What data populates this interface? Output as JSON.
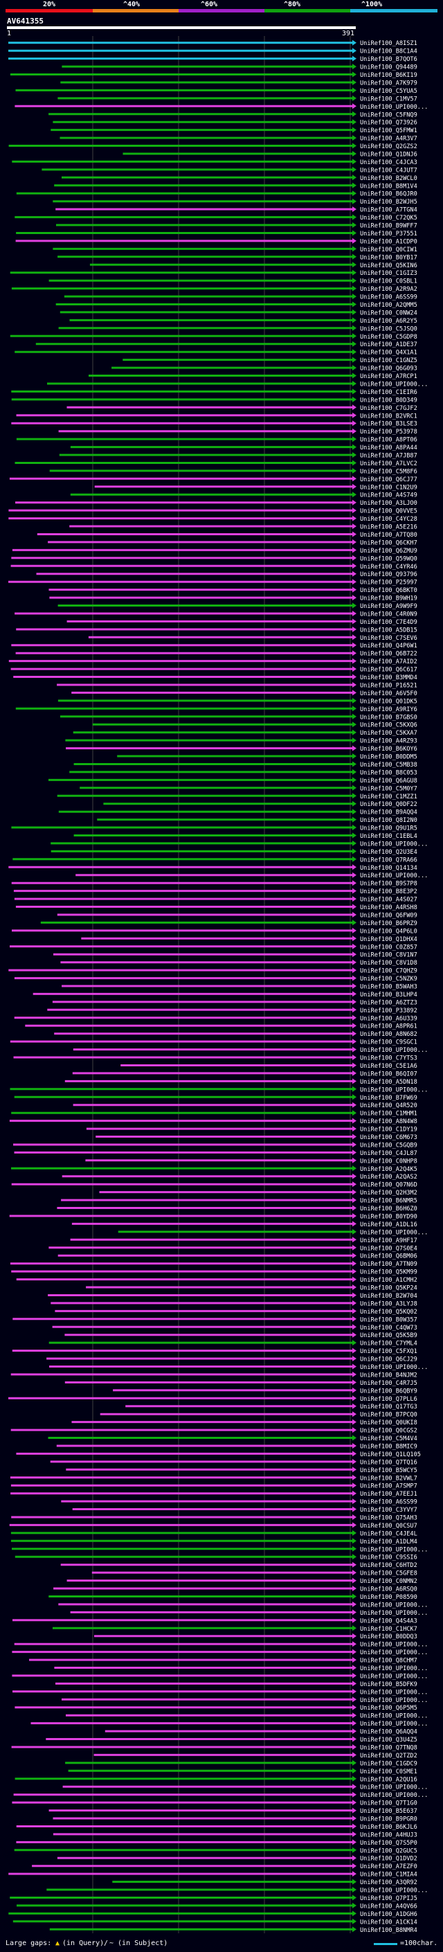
{
  "legend": {
    "labels": [
      "20%",
      "^40%",
      "^60%",
      "^80%",
      "^100%"
    ],
    "colors": [
      "#e8101a",
      "#e8801a",
      "#a020c8",
      "#10a010",
      "#20b0d8"
    ]
  },
  "query": {
    "name": "AV641355",
    "start": "1",
    "end": "391"
  },
  "colors": {
    "background": "#000014",
    "green": "#10b010",
    "magenta": "#e040e0",
    "cyan": "#20c0e0",
    "grid": "#404040"
  },
  "hits": [
    {
      "label": "UniRef100_A8ISZ1",
      "color": "cyan"
    },
    {
      "label": "UniRef100_B8C1A4",
      "color": "cyan"
    },
    {
      "label": "UniRef100_B7QOT6",
      "color": "cyan"
    },
    {
      "label": "UniRef100_Q94489",
      "color": "green"
    },
    {
      "label": "UniRef100_B6KI19",
      "color": "green"
    },
    {
      "label": "UniRef100_A7K979",
      "color": "green"
    },
    {
      "label": "UniRef100_C5YUA5",
      "color": "green"
    },
    {
      "label": "UniRef100_C1MV57",
      "color": "green"
    },
    {
      "label": "UniRef100_UPI000...",
      "color": "magenta"
    },
    {
      "label": "UniRef100_C5FNQ9",
      "color": "green"
    },
    {
      "label": "UniRef100_Q73926",
      "color": "green"
    },
    {
      "label": "UniRef100_Q5FMW1",
      "color": "green"
    },
    {
      "label": "UniRef100_A4R3V7",
      "color": "green"
    },
    {
      "label": "UniRef100_Q2GZS2",
      "color": "green"
    },
    {
      "label": "UniRef100_Q1DNJ6",
      "color": "green"
    },
    {
      "label": "UniRef100_C4JCA3",
      "color": "green"
    },
    {
      "label": "UniRef100_C4JUT7",
      "color": "green"
    },
    {
      "label": "UniRef100_B2WCL0",
      "color": "green"
    },
    {
      "label": "UniRef100_B8M1V4",
      "color": "green"
    },
    {
      "label": "UniRef100_B6QJR0",
      "color": "green"
    },
    {
      "label": "UniRef100_B2WJH5",
      "color": "green"
    },
    {
      "label": "UniRef100_A7TGN4",
      "color": "magenta"
    },
    {
      "label": "UniRef100_C72QK5",
      "color": "green"
    },
    {
      "label": "UniRef100_B9WFF7",
      "color": "green"
    },
    {
      "label": "UniRef100_P37551",
      "color": "green"
    },
    {
      "label": "UniRef100_A1CDP0",
      "color": "magenta"
    },
    {
      "label": "UniRef100_Q0CIW1",
      "color": "green"
    },
    {
      "label": "UniRef100_B0YB17",
      "color": "green"
    },
    {
      "label": "UniRef100_Q5KIN6",
      "color": "green"
    },
    {
      "label": "UniRef100_C1GIZ3",
      "color": "green"
    },
    {
      "label": "UniRef100_C0SBL1",
      "color": "green"
    },
    {
      "label": "UniRef100_A2R9A2",
      "color": "green"
    },
    {
      "label": "UniRef100_A6SS99",
      "color": "green"
    },
    {
      "label": "UniRef100_A2QMM5",
      "color": "green"
    },
    {
      "label": "UniRef100_C0NW24",
      "color": "green"
    },
    {
      "label": "UniRef100_A6R2Y5",
      "color": "green"
    },
    {
      "label": "UniRef100_C5JSQ0",
      "color": "green"
    },
    {
      "label": "UniRef100_C5GDP8",
      "color": "green"
    },
    {
      "label": "UniRef100_A1DE37",
      "color": "green"
    },
    {
      "label": "UniRef100_Q4X1A1",
      "color": "green"
    },
    {
      "label": "UniRef100_C1GNZ5",
      "color": "green"
    },
    {
      "label": "UniRef100_Q6G093",
      "color": "green"
    },
    {
      "label": "UniRef100_A7RCP1",
      "color": "green"
    },
    {
      "label": "UniRef100_UPI000...",
      "color": "green"
    },
    {
      "label": "UniRef100_C1EIR6",
      "color": "green"
    },
    {
      "label": "UniRef100_B0D349",
      "color": "green"
    },
    {
      "label": "UniRef100_C7GJF2",
      "color": "magenta"
    },
    {
      "label": "UniRef100_B2VRC1",
      "color": "magenta"
    },
    {
      "label": "UniRef100_B3LSE3",
      "color": "magenta"
    },
    {
      "label": "UniRef100_P53978",
      "color": "magenta"
    },
    {
      "label": "UniRef100_A8PT06",
      "color": "green"
    },
    {
      "label": "UniRef100_A8PA44",
      "color": "green"
    },
    {
      "label": "UniRef100_A7JB87",
      "color": "green"
    },
    {
      "label": "UniRef100_A7LVC2",
      "color": "green"
    },
    {
      "label": "UniRef100_C5M8F6",
      "color": "green"
    },
    {
      "label": "UniRef100_Q6CJ77",
      "color": "magenta"
    },
    {
      "label": "UniRef100_C1N2U9",
      "color": "magenta"
    },
    {
      "label": "UniRef100_A4S749",
      "color": "green"
    },
    {
      "label": "UniRef100_A3LJO0",
      "color": "magenta"
    },
    {
      "label": "UniRef100_Q0VVE5",
      "color": "magenta"
    },
    {
      "label": "UniRef100_C4YC28",
      "color": "magenta"
    },
    {
      "label": "UniRef100_A5E216",
      "color": "magenta"
    },
    {
      "label": "UniRef100_A7TQ80",
      "color": "magenta"
    },
    {
      "label": "UniRef100_Q6CKH7",
      "color": "magenta"
    },
    {
      "label": "UniRef100_Q6ZMU9",
      "color": "magenta"
    },
    {
      "label": "UniRef100_Q59WQ0",
      "color": "magenta"
    },
    {
      "label": "UniRef100_C4YR46",
      "color": "magenta"
    },
    {
      "label": "UniRef100_Q93796",
      "color": "magenta"
    },
    {
      "label": "UniRef100_P25997",
      "color": "magenta"
    },
    {
      "label": "UniRef100_Q6BKT0",
      "color": "magenta"
    },
    {
      "label": "UniRef100_B9WH19",
      "color": "magenta"
    },
    {
      "label": "UniRef100_A9W9F9",
      "color": "green"
    },
    {
      "label": "UniRef100_C4R0N9",
      "color": "magenta"
    },
    {
      "label": "UniRef100_C7E4D9",
      "color": "magenta"
    },
    {
      "label": "UniRef100_A5DB15",
      "color": "magenta"
    },
    {
      "label": "UniRef100_C7SEV6",
      "color": "magenta"
    },
    {
      "label": "UniRef100_Q4P6W1",
      "color": "magenta"
    },
    {
      "label": "UniRef100_Q6B722",
      "color": "magenta"
    },
    {
      "label": "UniRef100_A7AID2",
      "color": "magenta"
    },
    {
      "label": "UniRef100_Q6C617",
      "color": "magenta"
    },
    {
      "label": "UniRef100_B3MMD4",
      "color": "magenta"
    },
    {
      "label": "UniRef100_P16521",
      "color": "magenta"
    },
    {
      "label": "UniRef100_A6V5F0",
      "color": "magenta"
    },
    {
      "label": "UniRef100_Q01DK5",
      "color": "green"
    },
    {
      "label": "UniRef100_A9RIY6",
      "color": "green"
    },
    {
      "label": "UniRef100_B7GBS0",
      "color": "green"
    },
    {
      "label": "UniRef100_C5KXQ6",
      "color": "green"
    },
    {
      "label": "UniRef100_C5KXA7",
      "color": "green"
    },
    {
      "label": "UniRef100_A4RZ93",
      "color": "green"
    },
    {
      "label": "UniRef100_B6KOY6",
      "color": "magenta"
    },
    {
      "label": "UniRef100_B0DDM5",
      "color": "green"
    },
    {
      "label": "UniRef100_C5MB38",
      "color": "green"
    },
    {
      "label": "UniRef100_B8C053",
      "color": "green"
    },
    {
      "label": "UniRef100_Q6AGU8",
      "color": "green"
    },
    {
      "label": "UniRef100_C5M0Y7",
      "color": "green"
    },
    {
      "label": "UniRef100_C1MZZ1",
      "color": "green"
    },
    {
      "label": "UniRef100_Q0DF22",
      "color": "green"
    },
    {
      "label": "UniRef100_B9AQQ4",
      "color": "green"
    },
    {
      "label": "UniRef100_Q8I2N0",
      "color": "green"
    },
    {
      "label": "UniRef100_Q9U1R5",
      "color": "green"
    },
    {
      "label": "UniRef100_C1EBL4",
      "color": "green"
    },
    {
      "label": "UniRef100_UPI000...",
      "color": "green"
    },
    {
      "label": "UniRef100_Q2U3E4",
      "color": "green"
    },
    {
      "label": "UniRef100_Q7RA66",
      "color": "green"
    },
    {
      "label": "UniRef100_Q14134",
      "color": "magenta"
    },
    {
      "label": "UniRef100_UPI000...",
      "color": "magenta"
    },
    {
      "label": "UniRef100_B9S7P8",
      "color": "magenta"
    },
    {
      "label": "UniRef100_B8E3P2",
      "color": "magenta"
    },
    {
      "label": "UniRef100_A4S027",
      "color": "magenta"
    },
    {
      "label": "UniRef100_A4RSH8",
      "color": "magenta"
    },
    {
      "label": "UniRef100_Q6FW09",
      "color": "magenta"
    },
    {
      "label": "UniRef100_B6PRZ9",
      "color": "green"
    },
    {
      "label": "UniRef100_Q4P6L0",
      "color": "magenta"
    },
    {
      "label": "UniRef100_Q1DHX4",
      "color": "magenta"
    },
    {
      "label": "UniRef100_C0Z857",
      "color": "magenta"
    },
    {
      "label": "UniRef100_C8V1N7",
      "color": "magenta"
    },
    {
      "label": "UniRef100_C8V1D8",
      "color": "magenta"
    },
    {
      "label": "UniRef100_C7QHZ9",
      "color": "magenta"
    },
    {
      "label": "UniRef100_C5NZK9",
      "color": "magenta"
    },
    {
      "label": "UniRef100_B5WAH3",
      "color": "magenta"
    },
    {
      "label": "UniRef100_B3LHP4",
      "color": "magenta"
    },
    {
      "label": "UniRef100_A6ZTZ3",
      "color": "magenta"
    },
    {
      "label": "UniRef100_P33892",
      "color": "magenta"
    },
    {
      "label": "UniRef100_A6U339",
      "color": "magenta"
    },
    {
      "label": "UniRef100_A8PR61",
      "color": "magenta"
    },
    {
      "label": "UniRef100_A8N682",
      "color": "magenta"
    },
    {
      "label": "UniRef100_C9SGC1",
      "color": "magenta"
    },
    {
      "label": "UniRef100_UPI000...",
      "color": "magenta"
    },
    {
      "label": "UniRef100_C7YTS3",
      "color": "magenta"
    },
    {
      "label": "UniRef100_C5E1A6",
      "color": "magenta"
    },
    {
      "label": "UniRef100_B6QI07",
      "color": "magenta"
    },
    {
      "label": "UniRef100_A5DN18",
      "color": "magenta"
    },
    {
      "label": "UniRef100_UPI000...",
      "color": "green"
    },
    {
      "label": "UniRef100_B7FW69",
      "color": "green"
    },
    {
      "label": "UniRef100_Q4R520",
      "color": "magenta"
    },
    {
      "label": "UniRef100_C1MHM1",
      "color": "green"
    },
    {
      "label": "UniRef100_A8N4W8",
      "color": "magenta"
    },
    {
      "label": "UniRef100_C1DY19",
      "color": "magenta"
    },
    {
      "label": "UniRef100_C6M673",
      "color": "magenta"
    },
    {
      "label": "UniRef100_C5GQB9",
      "color": "magenta"
    },
    {
      "label": "UniRef100_C4JL87",
      "color": "magenta"
    },
    {
      "label": "UniRef100_C0NHP8",
      "color": "magenta"
    },
    {
      "label": "UniRef100_A2Q4K5",
      "color": "green"
    },
    {
      "label": "UniRef100_A2QAS2",
      "color": "magenta"
    },
    {
      "label": "UniRef100_Q07N6D",
      "color": "magenta"
    },
    {
      "label": "UniRef100_Q2H3M2",
      "color": "magenta"
    },
    {
      "label": "UniRef100_B6NMR5",
      "color": "magenta"
    },
    {
      "label": "UniRef100_B6H6Z0",
      "color": "magenta"
    },
    {
      "label": "UniRef100_B0YD90",
      "color": "magenta"
    },
    {
      "label": "UniRef100_A1DL16",
      "color": "magenta"
    },
    {
      "label": "UniRef100_UPI000...",
      "color": "green"
    },
    {
      "label": "UniRef100_A9HF17",
      "color": "magenta"
    },
    {
      "label": "UniRef100_Q7S0E4",
      "color": "magenta"
    },
    {
      "label": "UniRef100_Q6BM06",
      "color": "magenta"
    },
    {
      "label": "UniRef100_A7TN09",
      "color": "magenta"
    },
    {
      "label": "UniRef100_Q5KM99",
      "color": "magenta"
    },
    {
      "label": "UniRef100_A1CMH2",
      "color": "magenta"
    },
    {
      "label": "UniRef100_Q5KP24",
      "color": "magenta"
    },
    {
      "label": "UniRef100_B2W704",
      "color": "magenta"
    },
    {
      "label": "UniRef100_A3LYJ8",
      "color": "magenta"
    },
    {
      "label": "UniRef100_Q5KQ02",
      "color": "magenta"
    },
    {
      "label": "UniRef100_B0W357",
      "color": "magenta"
    },
    {
      "label": "UniRef100_C4QW73",
      "color": "magenta"
    },
    {
      "label": "UniRef100_Q5K5B9",
      "color": "magenta"
    },
    {
      "label": "UniRef100_C7YML4",
      "color": "green"
    },
    {
      "label": "UniRef100_C5FXQ1",
      "color": "magenta"
    },
    {
      "label": "UniRef100_Q6CJ29",
      "color": "magenta"
    },
    {
      "label": "UniRef100_UPI000...",
      "color": "magenta"
    },
    {
      "label": "UniRef100_B4NJM2",
      "color": "magenta"
    },
    {
      "label": "UniRef100_C4R7J5",
      "color": "magenta"
    },
    {
      "label": "UniRef100_B6QBY9",
      "color": "magenta"
    },
    {
      "label": "UniRef100_Q7PLL6",
      "color": "magenta"
    },
    {
      "label": "UniRef100_Q17TG3",
      "color": "magenta"
    },
    {
      "label": "UniRef100_B7PCQ0",
      "color": "magenta"
    },
    {
      "label": "UniRef100_Q0UKI8",
      "color": "magenta"
    },
    {
      "label": "UniRef100_Q0CGS2",
      "color": "magenta"
    },
    {
      "label": "UniRef100_C5M4V4",
      "color": "green"
    },
    {
      "label": "UniRef100_B8MIC9",
      "color": "magenta"
    },
    {
      "label": "UniRef100_Q1LQ105",
      "color": "magenta"
    },
    {
      "label": "UniRef100_Q7TQ16",
      "color": "magenta"
    },
    {
      "label": "UniRef100_B5WCY5",
      "color": "magenta"
    },
    {
      "label": "UniRef100_B2VWL7",
      "color": "magenta"
    },
    {
      "label": "UniRef100_A7SMP7",
      "color": "magenta"
    },
    {
      "label": "UniRef100_A7EEJ1",
      "color": "magenta"
    },
    {
      "label": "UniRef100_A6SS99",
      "color": "magenta"
    },
    {
      "label": "UniRef100_C3YVY7",
      "color": "magenta"
    },
    {
      "label": "UniRef100_Q75AH3",
      "color": "magenta"
    },
    {
      "label": "UniRef100_Q0CSU7",
      "color": "magenta"
    },
    {
      "label": "UniRef100_C4JE4L",
      "color": "green"
    },
    {
      "label": "UniRef100_A1DLM4",
      "color": "green"
    },
    {
      "label": "UniRef100_UPI000...",
      "color": "green"
    },
    {
      "label": "UniRef100_C9SSI6",
      "color": "green"
    },
    {
      "label": "UniRef100_C6HTD2",
      "color": "magenta"
    },
    {
      "label": "UniRef100_C5GFE8",
      "color": "magenta"
    },
    {
      "label": "UniRef100_C0NMN2",
      "color": "magenta"
    },
    {
      "label": "UniRef100_A6RSQ0",
      "color": "magenta"
    },
    {
      "label": "UniRef100_P08590",
      "color": "green"
    },
    {
      "label": "UniRef100_UPI000...",
      "color": "magenta"
    },
    {
      "label": "UniRef100_UPI000...",
      "color": "magenta"
    },
    {
      "label": "UniRef100_Q4S4A3",
      "color": "magenta"
    },
    {
      "label": "UniRef100_C1HCK7",
      "color": "green"
    },
    {
      "label": "UniRef100_B0DDQ3",
      "color": "magenta"
    },
    {
      "label": "UniRef100_UPI000...",
      "color": "magenta"
    },
    {
      "label": "UniRef100_UPI000...",
      "color": "magenta"
    },
    {
      "label": "UniRef100_Q8CHM7",
      "color": "magenta"
    },
    {
      "label": "UniRef100_UPI000...",
      "color": "magenta"
    },
    {
      "label": "UniRef100_UPI000...",
      "color": "magenta"
    },
    {
      "label": "UniRef100_B5DFK9",
      "color": "magenta"
    },
    {
      "label": "UniRef100_UPI000...",
      "color": "magenta"
    },
    {
      "label": "UniRef100_UPI000...",
      "color": "magenta"
    },
    {
      "label": "UniRef100_Q6P5M5",
      "color": "magenta"
    },
    {
      "label": "UniRef100_UPI000...",
      "color": "magenta"
    },
    {
      "label": "UniRef100_UPI000...",
      "color": "magenta"
    },
    {
      "label": "UniRef100_Q6AQQ4",
      "color": "magenta"
    },
    {
      "label": "UniRef100_Q3U4Z5",
      "color": "magenta"
    },
    {
      "label": "UniRef100_Q7TNQ8",
      "color": "magenta"
    },
    {
      "label": "UniRef100_Q2TZD2",
      "color": "magenta"
    },
    {
      "label": "UniRef100_C1GDC9",
      "color": "green"
    },
    {
      "label": "UniRef100_C0SME1",
      "color": "green"
    },
    {
      "label": "UniRef100_A2QU16",
      "color": "green"
    },
    {
      "label": "UniRef100_UPI000...",
      "color": "magenta"
    },
    {
      "label": "UniRef100_UPI000...",
      "color": "magenta"
    },
    {
      "label": "UniRef100_Q7T1G0",
      "color": "magenta"
    },
    {
      "label": "UniRef100_B5E637",
      "color": "magenta"
    },
    {
      "label": "UniRef100_B9PGR0",
      "color": "magenta"
    },
    {
      "label": "UniRef100_B6KJL6",
      "color": "magenta"
    },
    {
      "label": "UniRef100_A4HUJ3",
      "color": "magenta"
    },
    {
      "label": "UniRef100_Q7S5P0",
      "color": "magenta"
    },
    {
      "label": "UniRef100_Q2GUC5",
      "color": "green"
    },
    {
      "label": "UniRef100_Q1DVD2",
      "color": "magenta"
    },
    {
      "label": "UniRef100_A7EZF0",
      "color": "magenta"
    },
    {
      "label": "UniRef100_C1MIA4",
      "color": "magenta"
    },
    {
      "label": "UniRef100_A3QR92",
      "color": "green"
    },
    {
      "label": "UniRef100_UPI000...",
      "color": "green"
    },
    {
      "label": "UniRef100_Q7PIJ5",
      "color": "green"
    },
    {
      "label": "UniRef100_A4QV66",
      "color": "green"
    },
    {
      "label": "UniRef100_A1DGH6",
      "color": "green"
    },
    {
      "label": "UniRef100_A1CK14",
      "color": "green"
    },
    {
      "label": "UniRef100_B8NMR4",
      "color": "green"
    }
  ],
  "footer": {
    "large_gaps": "Large gaps:",
    "in_query": "(in Query)",
    "slash": "/",
    "in_subject": "~ (in Subject)",
    "scale": "=100char."
  }
}
